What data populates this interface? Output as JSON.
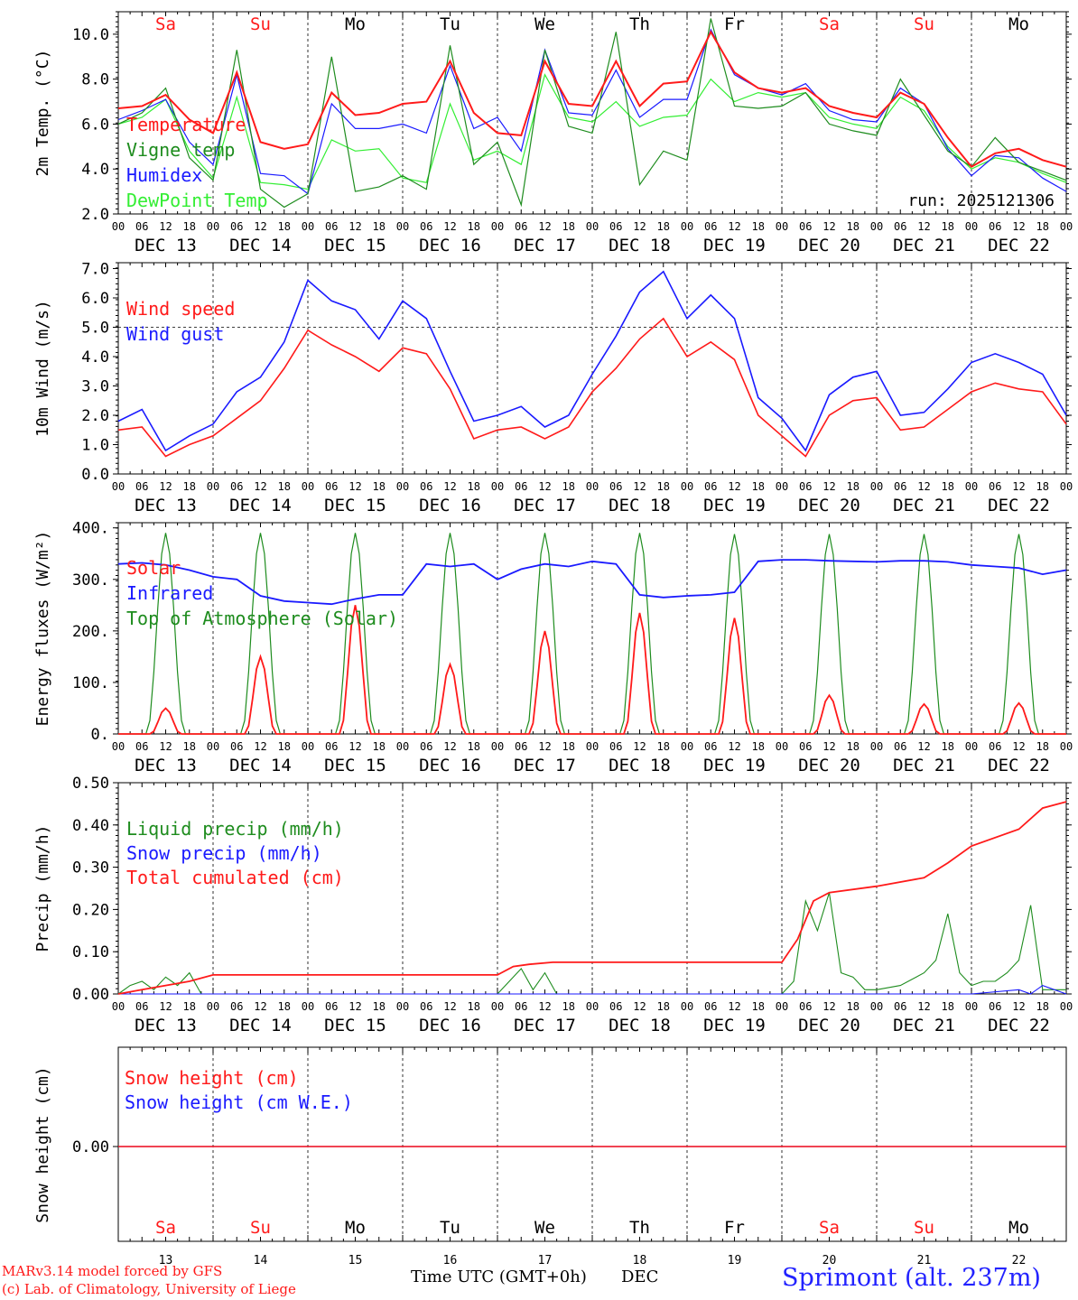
{
  "colors": {
    "red": "#ff1a1a",
    "darkgreen": "#1e8c1e",
    "blue": "#1a1aff",
    "lightgreen": "#33ee33",
    "black": "#000000",
    "station": "#2222ff"
  },
  "time_axis": {
    "hour_ticks": [
      "00",
      "06",
      "12",
      "18"
    ],
    "end_tick": "00",
    "date_labels": [
      "DEC 13",
      "DEC 14",
      "DEC 15",
      "DEC 16",
      "DEC 17",
      "DEC 18",
      "DEC 19",
      "DEC 20",
      "DEC 21",
      "DEC 22"
    ],
    "weekdays": [
      "Sa",
      "Su",
      "Mo",
      "Tu",
      "We",
      "Th",
      "Fr",
      "Sa",
      "Su",
      "Mo"
    ],
    "weekend_flags": [
      true,
      true,
      false,
      false,
      false,
      false,
      false,
      true,
      true,
      false
    ],
    "day_numbers": [
      "13",
      "14",
      "15",
      "16",
      "17",
      "18",
      "19",
      "20",
      "21",
      "22"
    ],
    "start": "2025-12-13 00 UTC",
    "hours_total": 240
  },
  "chart_data": [
    {
      "type": "line",
      "title": "2m Temp.",
      "ylabel": "2m Temp. (°C)",
      "ylim": [
        2,
        11
      ],
      "yticks": [
        2,
        4,
        6,
        8,
        10
      ],
      "ytick_labels": [
        "2.0",
        "4.0",
        "6.0",
        "8.0",
        "10.0"
      ],
      "run_label": "run: 2025121306",
      "x_hours": [
        0,
        6,
        12,
        18,
        24,
        30,
        36,
        42,
        48,
        54,
        60,
        66,
        72,
        78,
        84,
        90,
        96,
        102,
        108,
        114,
        120,
        126,
        132,
        138,
        144,
        150,
        156,
        162,
        168,
        174,
        180,
        186,
        192,
        198,
        204,
        210,
        216,
        222,
        228,
        234,
        240
      ],
      "series": [
        {
          "name": "Temperature",
          "color": "red",
          "values": [
            6.7,
            6.8,
            7.3,
            6.2,
            5.6,
            8.3,
            5.2,
            4.9,
            5.1,
            7.4,
            6.4,
            6.5,
            6.9,
            7.0,
            8.8,
            6.5,
            5.6,
            5.5,
            8.8,
            6.9,
            6.8,
            8.8,
            6.8,
            7.8,
            7.9,
            10.1,
            8.3,
            7.6,
            7.4,
            7.6,
            6.8,
            6.5,
            6.3,
            7.4,
            6.9,
            5.4,
            4.1,
            4.7,
            4.9,
            4.4,
            4.1
          ]
        },
        {
          "name": "Vigne temp",
          "color": "darkgreen",
          "values": [
            6.0,
            6.5,
            7.6,
            4.5,
            3.5,
            9.3,
            3.1,
            2.3,
            2.9,
            9.0,
            3.0,
            3.2,
            3.7,
            3.1,
            9.5,
            4.2,
            5.2,
            2.4,
            9.3,
            5.9,
            5.6,
            10.1,
            3.3,
            4.8,
            4.4,
            10.7,
            6.8,
            6.7,
            6.8,
            7.4,
            6.0,
            5.7,
            5.5,
            8.0,
            6.4,
            4.8,
            4.1,
            5.4,
            4.3,
            3.9,
            3.5
          ]
        },
        {
          "name": "Humidex",
          "color": "blue",
          "values": [
            6.2,
            6.6,
            7.1,
            5.2,
            4.2,
            8.2,
            3.8,
            3.7,
            2.9,
            6.9,
            5.8,
            5.8,
            6.0,
            5.6,
            8.6,
            5.8,
            6.3,
            4.8,
            9.3,
            6.5,
            6.4,
            8.4,
            6.3,
            7.1,
            7.1,
            10.2,
            8.2,
            7.6,
            7.3,
            7.8,
            6.6,
            6.2,
            6.1,
            7.6,
            6.9,
            4.9,
            3.7,
            4.6,
            4.5,
            3.6,
            3.0
          ]
        },
        {
          "name": "DewPoint Temp",
          "color": "lightgreen",
          "values": [
            6.0,
            6.3,
            7.1,
            4.8,
            3.6,
            7.2,
            3.4,
            3.3,
            3.1,
            5.3,
            4.8,
            4.9,
            3.6,
            3.4,
            6.9,
            4.4,
            4.8,
            4.2,
            8.2,
            6.3,
            6.1,
            7.0,
            5.9,
            6.3,
            6.4,
            8.0,
            7.0,
            7.4,
            7.2,
            7.4,
            6.3,
            6.0,
            5.8,
            7.2,
            6.6,
            5.0,
            4.0,
            4.5,
            4.3,
            3.8,
            3.4
          ]
        }
      ]
    },
    {
      "type": "line",
      "title": "10m Wind",
      "ylabel": "10m Wind (m/s)",
      "ylim": [
        0,
        7.2
      ],
      "yticks": [
        0,
        1,
        2,
        3,
        4,
        5,
        6,
        7
      ],
      "ytick_labels": [
        "0.0",
        "1.0",
        "2.0",
        "3.0",
        "4.0",
        "5.0",
        "6.0",
        "7.0"
      ],
      "reference_line": 5.0,
      "x_hours": [
        0,
        6,
        12,
        18,
        24,
        30,
        36,
        42,
        48,
        54,
        60,
        66,
        72,
        78,
        84,
        90,
        96,
        102,
        108,
        114,
        120,
        126,
        132,
        138,
        144,
        150,
        156,
        162,
        168,
        174,
        180,
        186,
        192,
        198,
        204,
        210,
        216,
        222,
        228,
        234,
        240
      ],
      "series": [
        {
          "name": "Wind speed",
          "color": "red",
          "values": [
            1.5,
            1.6,
            0.6,
            1.0,
            1.3,
            1.9,
            2.5,
            3.6,
            4.9,
            4.4,
            4.0,
            3.5,
            4.3,
            4.1,
            2.9,
            1.2,
            1.5,
            1.6,
            1.2,
            1.6,
            2.8,
            3.6,
            4.6,
            5.3,
            4.0,
            4.5,
            3.9,
            2.0,
            1.3,
            0.6,
            2.0,
            2.5,
            2.6,
            1.5,
            1.6,
            2.2,
            2.8,
            3.1,
            2.9,
            2.8,
            1.7
          ]
        },
        {
          "name": "Wind gust",
          "color": "blue",
          "values": [
            1.8,
            2.2,
            0.8,
            1.3,
            1.7,
            2.8,
            3.3,
            4.5,
            6.6,
            5.9,
            5.6,
            4.6,
            5.9,
            5.3,
            3.5,
            1.8,
            2.0,
            2.3,
            1.6,
            2.0,
            3.4,
            4.7,
            6.2,
            6.9,
            5.3,
            6.1,
            5.3,
            2.6,
            1.9,
            0.8,
            2.7,
            3.3,
            3.5,
            2.0,
            2.1,
            2.9,
            3.8,
            4.1,
            3.8,
            3.4,
            2.0
          ]
        }
      ]
    },
    {
      "type": "line",
      "title": "Energy fluxes",
      "ylabel": "Energy fluxes (W/m²)",
      "ylim": [
        0,
        410
      ],
      "yticks": [
        0,
        100,
        200,
        300,
        400
      ],
      "ytick_labels": [
        "0.",
        "100.",
        "200.",
        "300.",
        "400."
      ],
      "series": [
        {
          "name": "Solar",
          "color": "red",
          "daily_peaks": [
            50,
            150,
            250,
            135,
            200,
            235,
            225,
            75,
            58,
            60
          ]
        },
        {
          "name": "Infrared",
          "color": "blue",
          "x_hours": [
            0,
            6,
            12,
            18,
            24,
            30,
            36,
            42,
            48,
            54,
            60,
            66,
            72,
            78,
            84,
            90,
            96,
            102,
            108,
            114,
            120,
            126,
            132,
            138,
            144,
            150,
            156,
            162,
            168,
            174,
            180,
            186,
            192,
            198,
            204,
            210,
            216,
            222,
            228,
            234,
            240
          ],
          "values": [
            330,
            332,
            328,
            318,
            305,
            300,
            268,
            258,
            255,
            252,
            262,
            270,
            270,
            330,
            325,
            330,
            300,
            320,
            330,
            325,
            335,
            330,
            270,
            265,
            268,
            270,
            275,
            335,
            338,
            338,
            336,
            335,
            334,
            336,
            336,
            334,
            328,
            325,
            322,
            310,
            318
          ]
        },
        {
          "name": "Top of Atmosphere (Solar)",
          "color": "darkgreen",
          "daily_peaks": [
            390,
            390,
            390,
            390,
            390,
            390,
            388,
            388,
            388,
            388
          ]
        }
      ]
    },
    {
      "type": "line",
      "title": "Precip",
      "ylabel": "Precip (mm/h)",
      "ylim": [
        0,
        0.5
      ],
      "yticks": [
        0,
        0.1,
        0.2,
        0.3,
        0.4,
        0.5
      ],
      "ytick_labels": [
        "0.00",
        "0.10",
        "0.20",
        "0.30",
        "0.40",
        "0.50"
      ],
      "series": [
        {
          "name": "Liquid precip (mm/h)",
          "color": "darkgreen",
          "x_hours": [
            0,
            3,
            6,
            9,
            12,
            15,
            18,
            21,
            24,
            27,
            96,
            99,
            102,
            105,
            108,
            111,
            168,
            171,
            174,
            177,
            180,
            183,
            186,
            189,
            192,
            198,
            204,
            207,
            210,
            213,
            216,
            219,
            222,
            225,
            228,
            231,
            234,
            237,
            240
          ],
          "values": [
            0,
            0.02,
            0.03,
            0.01,
            0.04,
            0.02,
            0.05,
            0,
            0,
            0,
            0,
            0.03,
            0.06,
            0.01,
            0.05,
            0,
            0,
            0.03,
            0.22,
            0.15,
            0.24,
            0.05,
            0.04,
            0.01,
            0.01,
            0.02,
            0.05,
            0.08,
            0.19,
            0.05,
            0.02,
            0.03,
            0.03,
            0.05,
            0.08,
            0.21,
            0.01,
            0.01,
            0.01
          ]
        },
        {
          "name": "Snow precip (mm/h)",
          "color": "blue",
          "x_hours": [
            0,
            120,
            216,
            228,
            231,
            234,
            237,
            240
          ],
          "values": [
            0,
            0,
            0,
            0.01,
            0,
            0.02,
            0.01,
            0
          ]
        },
        {
          "name": "Total cumulated (cm)",
          "color": "red",
          "x_hours": [
            0,
            6,
            12,
            18,
            24,
            30,
            48,
            72,
            96,
            100,
            104,
            110,
            120,
            144,
            168,
            172,
            176,
            180,
            192,
            204,
            210,
            216,
            228,
            234,
            240
          ],
          "values": [
            0,
            0.01,
            0.02,
            0.03,
            0.045,
            0.045,
            0.045,
            0.045,
            0.045,
            0.065,
            0.07,
            0.075,
            0.075,
            0.075,
            0.075,
            0.13,
            0.22,
            0.24,
            0.255,
            0.275,
            0.31,
            0.35,
            0.39,
            0.44,
            0.455
          ]
        }
      ]
    },
    {
      "type": "line",
      "title": "Snow height",
      "ylabel": "Snow height (cm)",
      "yticks": [
        0
      ],
      "ytick_labels": [
        "0.00"
      ],
      "series": [
        {
          "name": "Snow height (cm)",
          "color": "red",
          "x_hours": [
            0,
            240
          ],
          "values": [
            0,
            0
          ]
        },
        {
          "name": "Snow height (cm W.E.)",
          "color": "blue",
          "x_hours": [
            0,
            240
          ],
          "values": [
            0,
            0
          ]
        }
      ]
    }
  ],
  "footer": {
    "model_line1": "MARv3.14 model forced by GFS",
    "model_line2": "(c) Lab. of Climatology, University of Liege",
    "time_label": "Time UTC (GMT+0h)",
    "month_label": "DEC",
    "station": "Sprimont (alt. 237m)"
  }
}
